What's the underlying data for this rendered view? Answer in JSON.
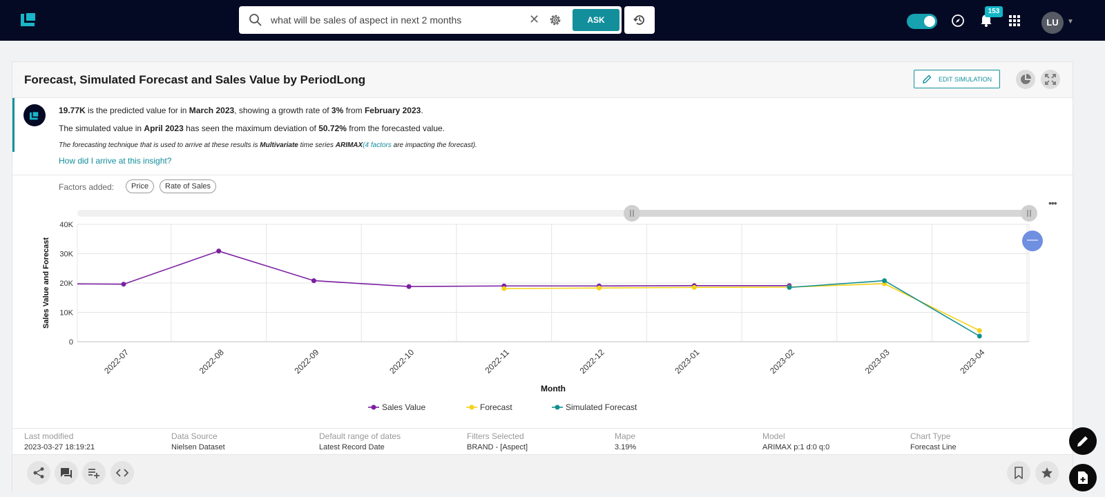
{
  "search": {
    "query": "what will be sales of aspect in next 2 months",
    "ask_label": "ASK"
  },
  "header": {
    "notification_count": "153",
    "avatar_initials": "LU"
  },
  "card": {
    "title": "Forecast, Simulated Forecast and Sales Value by PeriodLong",
    "edit_simulation_label": "EDIT SIMULATION"
  },
  "insight": {
    "line1": {
      "value": "19.77K",
      "text_a": " is the predicted value for in ",
      "period": "March 2023",
      "text_b": ", showing a growth rate of ",
      "rate": "3%",
      "text_c": " from ",
      "prev_period": "February 2023",
      "text_d": "."
    },
    "line2": {
      "text_a": "The simulated value in ",
      "period": "April 2023",
      "text_b": " has seen the maximum deviation of ",
      "deviation": "50.72%",
      "text_c": " from the forecasted value."
    },
    "line3": {
      "text_a": "The forecasting technique that is used to arrive at these results is ",
      "technique": "Multivariate",
      "text_b": " time series ",
      "model": "ARIMAX",
      "factors_link": "(4 factors",
      "text_c": " are impacting the forecast)."
    },
    "link": "How did I arrive at this insight?"
  },
  "factors": {
    "label": "Factors added:",
    "chips": [
      "Price",
      "Rate of Sales"
    ]
  },
  "chart_data": {
    "type": "line",
    "title": "",
    "xlabel": "Month",
    "ylabel": "Sales Value and Forecast",
    "categories": [
      "2022-07",
      "2022-08",
      "2022-09",
      "2022-10",
      "2022-11",
      "2022-12",
      "2023-01",
      "2023-02",
      "2023-03",
      "2023-04"
    ],
    "ylim": [
      0,
      40000
    ],
    "yticks": [
      {
        "value": 0,
        "label": "0"
      },
      {
        "value": 10000,
        "label": "10K"
      },
      {
        "value": 20000,
        "label": "20K"
      },
      {
        "value": 30000,
        "label": "30K"
      },
      {
        "value": 40000,
        "label": "40K"
      }
    ],
    "grid": true,
    "legend_position": "bottom",
    "series": [
      {
        "name": "Sales Value",
        "color": "#7b1fa2",
        "points": [
          [
            "2022-06-15",
            19700
          ],
          [
            "2022-07",
            19600
          ],
          [
            "2022-08",
            30900
          ],
          [
            "2022-09",
            20800
          ],
          [
            "2022-10",
            18800
          ],
          [
            "2022-11",
            19000
          ],
          [
            "2022-12",
            19000
          ],
          [
            "2023-01",
            19100
          ],
          [
            "2023-02",
            19100
          ]
        ]
      },
      {
        "name": "Forecast",
        "color": "#f4d21a",
        "points": [
          [
            "2022-11",
            18100
          ],
          [
            "2022-12",
            18300
          ],
          [
            "2023-01",
            18500
          ],
          [
            "2023-02",
            18600
          ],
          [
            "2023-03",
            19770
          ],
          [
            "2023-04",
            3800
          ]
        ]
      },
      {
        "name": "Simulated Forecast",
        "color": "#138f8f",
        "points": [
          [
            "2023-02",
            18500
          ],
          [
            "2023-03",
            20800
          ],
          [
            "2023-04",
            1900
          ]
        ]
      }
    ]
  },
  "meta": [
    {
      "label": "Last modified",
      "value": "2023-03-27 18:19:21"
    },
    {
      "label": "Data Source",
      "value": "Nielsen Dataset"
    },
    {
      "label": "Default range of dates",
      "value": "Latest Record Date"
    },
    {
      "label": "Filters Selected",
      "value": "BRAND - [Aspect]"
    },
    {
      "label": "Mape",
      "value": "3.19%"
    },
    {
      "label": "Model",
      "value": "ARIMAX p:1 d:0 q:0"
    },
    {
      "label": "Chart Type",
      "value": "Forecast Line"
    }
  ]
}
